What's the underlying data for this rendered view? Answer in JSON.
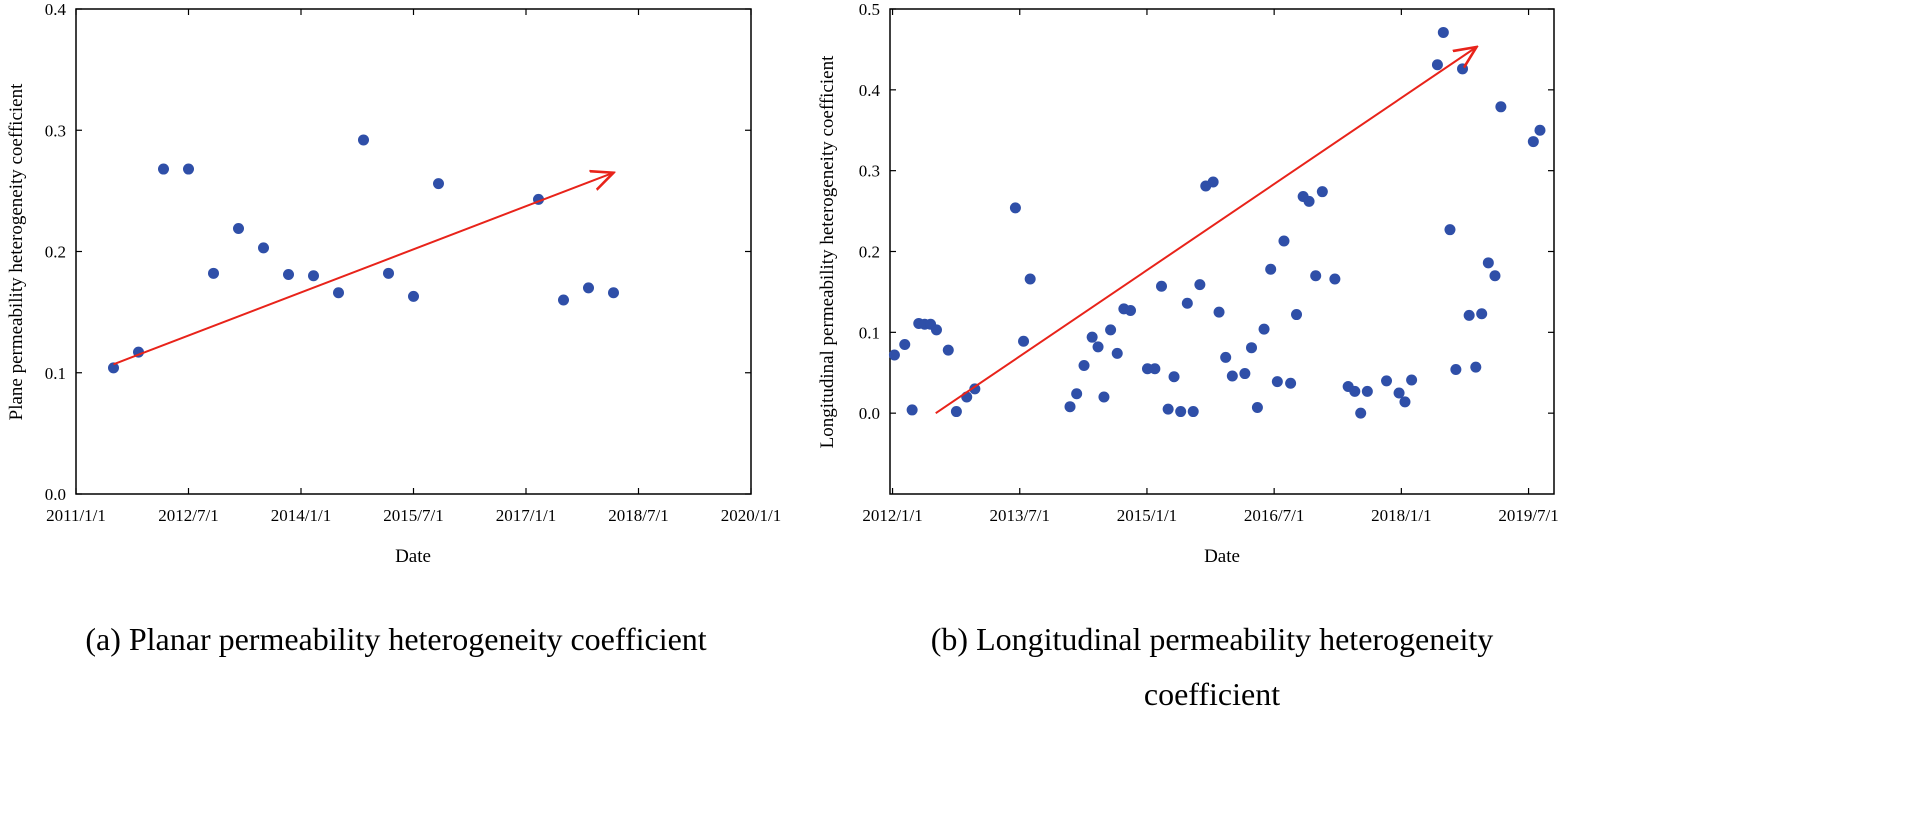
{
  "chart_data": [
    {
      "type": "scatter",
      "caption": "(a) Planar permeability heterogeneity coefficient",
      "xlabel": "Date",
      "ylabel": "Plane permeability heterogeneity coefficient",
      "x_tick_labels": [
        "2011/1/1",
        "2012/7/1",
        "2014/1/1",
        "2015/7/1",
        "2017/1/1",
        "2018/7/1",
        "2020/1/1"
      ],
      "xlim": [
        0,
        108
      ],
      "ylim": [
        0,
        0.4
      ],
      "y_ticks": [
        0.0,
        0.1,
        0.2,
        0.3,
        0.4
      ],
      "y_tick_labels": [
        "0.0",
        "0.1",
        "0.2",
        "0.3",
        "0.4"
      ],
      "marker_color": "#2f4fa8",
      "arrow_color": "#e8231a",
      "trend_arrow": {
        "from": [
          6,
          0.107
        ],
        "to": [
          86,
          0.265
        ]
      },
      "points": [
        {
          "x": 6,
          "y": 0.104
        },
        {
          "x": 10,
          "y": 0.117
        },
        {
          "x": 14,
          "y": 0.268
        },
        {
          "x": 18,
          "y": 0.268
        },
        {
          "x": 22,
          "y": 0.182
        },
        {
          "x": 26,
          "y": 0.219
        },
        {
          "x": 30,
          "y": 0.203
        },
        {
          "x": 34,
          "y": 0.181
        },
        {
          "x": 38,
          "y": 0.18
        },
        {
          "x": 42,
          "y": 0.166
        },
        {
          "x": 46,
          "y": 0.292
        },
        {
          "x": 50,
          "y": 0.182
        },
        {
          "x": 54,
          "y": 0.163
        },
        {
          "x": 58,
          "y": 0.256
        },
        {
          "x": 74,
          "y": 0.243
        },
        {
          "x": 78,
          "y": 0.16
        },
        {
          "x": 82,
          "y": 0.17
        },
        {
          "x": 86,
          "y": 0.166
        }
      ]
    },
    {
      "type": "scatter",
      "caption_line1": "(b) Longitudinal permeability heterogeneity",
      "caption_line2": "coefficient",
      "xlabel": "Date",
      "ylabel": "Longitudinal permeability heterogeneity coefficient",
      "x_tick_labels": [
        "2012/1/1",
        "2013/7/1",
        "2015/1/1",
        "2016/7/1",
        "2018/1/1",
        "2019/7/1"
      ],
      "xlim": [
        0,
        90
      ],
      "ylim": [
        -0.1,
        0.5
      ],
      "y_ticks": [
        0.0,
        0.1,
        0.2,
        0.3,
        0.4,
        0.5
      ],
      "y_tick_labels": [
        "0.0",
        "0.1",
        "0.2",
        "0.3",
        "0.4",
        "0.5"
      ],
      "marker_color": "#2f4fa8",
      "arrow_color": "#e8231a",
      "trend_arrow": {
        "from": [
          6.2,
          0.0
        ],
        "to": [
          79.5,
          0.453
        ]
      },
      "points": [
        {
          "x": 0.6,
          "y": 0.072
        },
        {
          "x": 2.0,
          "y": 0.085
        },
        {
          "x": 3.0,
          "y": 0.004
        },
        {
          "x": 3.9,
          "y": 0.111
        },
        {
          "x": 4.7,
          "y": 0.11
        },
        {
          "x": 5.5,
          "y": 0.11
        },
        {
          "x": 6.3,
          "y": 0.103
        },
        {
          "x": 7.9,
          "y": 0.078
        },
        {
          "x": 9.0,
          "y": 0.002
        },
        {
          "x": 10.4,
          "y": 0.02
        },
        {
          "x": 11.5,
          "y": 0.03
        },
        {
          "x": 17.0,
          "y": 0.254
        },
        {
          "x": 18.1,
          "y": 0.089
        },
        {
          "x": 19.0,
          "y": 0.166
        },
        {
          "x": 24.4,
          "y": 0.008
        },
        {
          "x": 25.3,
          "y": 0.024
        },
        {
          "x": 26.3,
          "y": 0.059
        },
        {
          "x": 27.4,
          "y": 0.094
        },
        {
          "x": 28.2,
          "y": 0.082
        },
        {
          "x": 29.0,
          "y": 0.02
        },
        {
          "x": 29.9,
          "y": 0.103
        },
        {
          "x": 30.8,
          "y": 0.074
        },
        {
          "x": 31.7,
          "y": 0.129
        },
        {
          "x": 32.6,
          "y": 0.127
        },
        {
          "x": 34.9,
          "y": 0.055
        },
        {
          "x": 35.9,
          "y": 0.055
        },
        {
          "x": 36.8,
          "y": 0.157
        },
        {
          "x": 37.7,
          "y": 0.005
        },
        {
          "x": 38.5,
          "y": 0.045
        },
        {
          "x": 39.4,
          "y": 0.002
        },
        {
          "x": 40.3,
          "y": 0.136
        },
        {
          "x": 41.1,
          "y": 0.002
        },
        {
          "x": 42.0,
          "y": 0.159
        },
        {
          "x": 42.8,
          "y": 0.281
        },
        {
          "x": 43.8,
          "y": 0.286
        },
        {
          "x": 44.6,
          "y": 0.125
        },
        {
          "x": 45.5,
          "y": 0.069
        },
        {
          "x": 46.4,
          "y": 0.046
        },
        {
          "x": 48.1,
          "y": 0.049
        },
        {
          "x": 49.0,
          "y": 0.081
        },
        {
          "x": 49.8,
          "y": 0.007
        },
        {
          "x": 50.7,
          "y": 0.104
        },
        {
          "x": 51.6,
          "y": 0.178
        },
        {
          "x": 52.5,
          "y": 0.039
        },
        {
          "x": 53.4,
          "y": 0.213
        },
        {
          "x": 54.3,
          "y": 0.037
        },
        {
          "x": 55.1,
          "y": 0.122
        },
        {
          "x": 56.0,
          "y": 0.268
        },
        {
          "x": 56.8,
          "y": 0.262
        },
        {
          "x": 57.7,
          "y": 0.17
        },
        {
          "x": 58.6,
          "y": 0.274
        },
        {
          "x": 60.3,
          "y": 0.166
        },
        {
          "x": 62.1,
          "y": 0.033
        },
        {
          "x": 63.0,
          "y": 0.027
        },
        {
          "x": 63.8,
          "y": 0.0
        },
        {
          "x": 64.7,
          "y": 0.027
        },
        {
          "x": 67.3,
          "y": 0.04
        },
        {
          "x": 69.0,
          "y": 0.025
        },
        {
          "x": 69.8,
          "y": 0.014
        },
        {
          "x": 70.7,
          "y": 0.041
        },
        {
          "x": 74.2,
          "y": 0.431
        },
        {
          "x": 75.0,
          "y": 0.471
        },
        {
          "x": 75.9,
          "y": 0.227
        },
        {
          "x": 76.7,
          "y": 0.054
        },
        {
          "x": 77.6,
          "y": 0.426
        },
        {
          "x": 78.5,
          "y": 0.121
        },
        {
          "x": 79.4,
          "y": 0.057
        },
        {
          "x": 80.2,
          "y": 0.123
        },
        {
          "x": 81.1,
          "y": 0.186
        },
        {
          "x": 82.0,
          "y": 0.17
        },
        {
          "x": 82.8,
          "y": 0.379
        },
        {
          "x": 87.2,
          "y": 0.336
        },
        {
          "x": 88.1,
          "y": 0.35
        }
      ]
    }
  ]
}
